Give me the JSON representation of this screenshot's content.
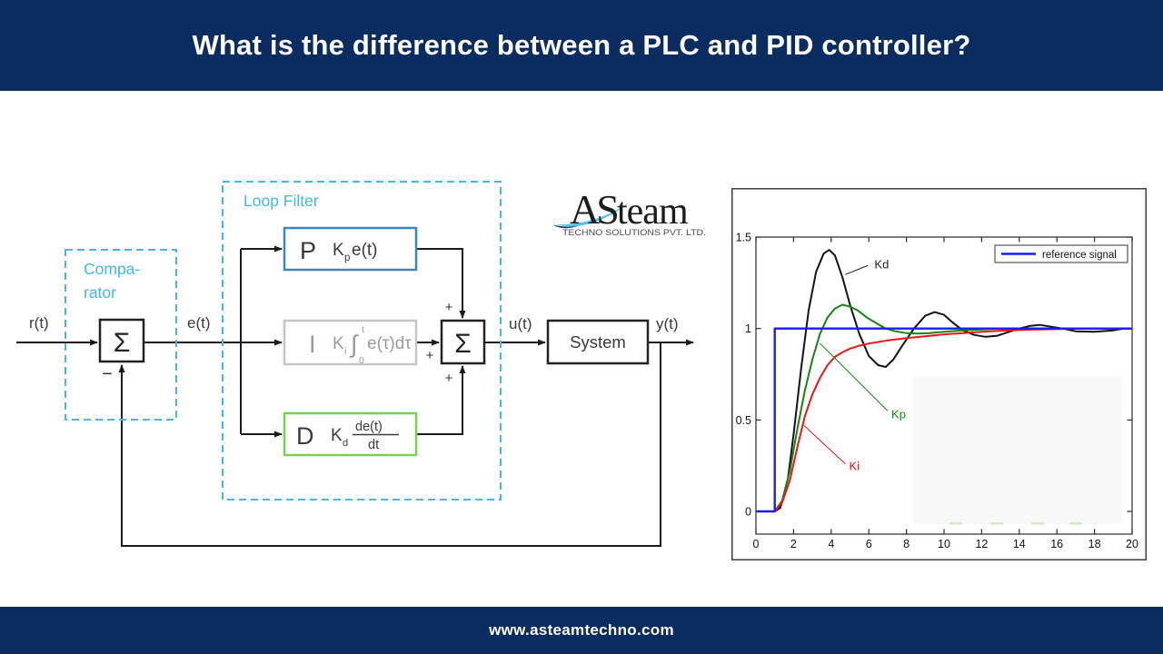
{
  "header": {
    "title": "What is the difference between a PLC and PID controller?",
    "bg": "#0b2c61"
  },
  "footer": {
    "url": "www.asteamtechno.com"
  },
  "logo": {
    "part1": "AS",
    "part2": "team",
    "tagline": "TECHNO SOLUTIONS PVT. LTD."
  },
  "diagram": {
    "input_label": "r(t)",
    "error_label": "e(t)",
    "control_label": "u(t)",
    "output_label": "y(t)",
    "minus": "−",
    "plus": "+",
    "sigma": "Σ",
    "comparator_line1": "Compa-",
    "comparator_line2": "rator",
    "loop_filter_title": "Loop Filter",
    "p": {
      "letter": "P",
      "k": "K",
      "sub": "p",
      "expr": "e(t)"
    },
    "i": {
      "letter": "I",
      "k": "K",
      "sub": "i",
      "integral": "∫",
      "upper": "t",
      "lower": "0",
      "expr": "e(τ)dτ"
    },
    "d": {
      "letter": "D",
      "k": "K",
      "sub": "d",
      "num": "de(t)",
      "den": "dt"
    },
    "system_label": "System",
    "accent_blue": "#45b7e8",
    "p_border": "#3c85c6",
    "i_border": "#c6c6c6",
    "d_border": "#79d150"
  },
  "chart_data": {
    "type": "line",
    "title": "",
    "xlabel": "",
    "ylabel": "",
    "xlim": [
      0,
      20
    ],
    "ylim": [
      -0.12,
      1.5
    ],
    "x_ticks": [
      0,
      2,
      4,
      6,
      8,
      10,
      12,
      14,
      16,
      18,
      20
    ],
    "y_ticks": [
      0,
      0.5,
      1,
      1.5
    ],
    "grid": false,
    "legend": [
      "reference signal"
    ],
    "legend_position": "top-right",
    "series": [
      {
        "name": "kd",
        "label": "Kd",
        "color": "#141414",
        "width": 2,
        "points": [
          [
            1,
            0
          ],
          [
            1.3,
            0.02
          ],
          [
            1.7,
            0.18
          ],
          [
            2,
            0.42
          ],
          [
            2.4,
            0.78
          ],
          [
            2.8,
            1.1
          ],
          [
            3.2,
            1.31
          ],
          [
            3.6,
            1.41
          ],
          [
            3.9,
            1.43
          ],
          [
            4.2,
            1.4
          ],
          [
            4.6,
            1.28
          ],
          [
            5,
            1.13
          ],
          [
            5.5,
            0.97
          ],
          [
            6,
            0.85
          ],
          [
            6.5,
            0.8
          ],
          [
            6.9,
            0.79
          ],
          [
            7.3,
            0.83
          ],
          [
            7.8,
            0.91
          ],
          [
            8.4,
            1.0
          ],
          [
            9,
            1.07
          ],
          [
            9.5,
            1.09
          ],
          [
            10,
            1.075
          ],
          [
            10.5,
            1.03
          ],
          [
            11,
            0.99
          ],
          [
            11.6,
            0.965
          ],
          [
            12.2,
            0.955
          ],
          [
            12.8,
            0.96
          ],
          [
            13.4,
            0.98
          ],
          [
            14,
            1.0
          ],
          [
            14.6,
            1.015
          ],
          [
            15.1,
            1.02
          ],
          [
            15.7,
            1.01
          ],
          [
            16.3,
            1.0
          ],
          [
            17,
            0.985
          ],
          [
            18,
            0.982
          ],
          [
            19,
            0.99
          ],
          [
            19.6,
            1.0
          ],
          [
            20,
            1.0
          ]
        ]
      },
      {
        "name": "kp",
        "label": "Kp",
        "color": "#128712",
        "width": 2,
        "points": [
          [
            1,
            0
          ],
          [
            1.4,
            0.06
          ],
          [
            1.8,
            0.22
          ],
          [
            2.2,
            0.45
          ],
          [
            2.6,
            0.66
          ],
          [
            3,
            0.83
          ],
          [
            3.4,
            0.97
          ],
          [
            3.8,
            1.06
          ],
          [
            4.2,
            1.11
          ],
          [
            4.6,
            1.13
          ],
          [
            5,
            1.12
          ],
          [
            5.4,
            1.1
          ],
          [
            5.9,
            1.06
          ],
          [
            6.4,
            1.03
          ],
          [
            6.9,
            1.0
          ],
          [
            7.4,
            0.985
          ],
          [
            8,
            0.975
          ],
          [
            8.6,
            0.972
          ],
          [
            9.2,
            0.975
          ],
          [
            10,
            0.982
          ],
          [
            11,
            0.99
          ],
          [
            12,
            0.995
          ],
          [
            13,
            1.0
          ],
          [
            20,
            1.0
          ]
        ]
      },
      {
        "name": "ki",
        "label": "Ki",
        "color": "#f01414",
        "width": 2,
        "points": [
          [
            0,
            0
          ],
          [
            1,
            0
          ],
          [
            1.4,
            0.05
          ],
          [
            1.8,
            0.17
          ],
          [
            2.2,
            0.35
          ],
          [
            2.6,
            0.52
          ],
          [
            3,
            0.64
          ],
          [
            3.4,
            0.73
          ],
          [
            3.8,
            0.8
          ],
          [
            4.2,
            0.845
          ],
          [
            4.6,
            0.87
          ],
          [
            5,
            0.89
          ],
          [
            5.5,
            0.906
          ],
          [
            6,
            0.918
          ],
          [
            7,
            0.935
          ],
          [
            8,
            0.948
          ],
          [
            9,
            0.958
          ],
          [
            10,
            0.968
          ],
          [
            11,
            0.975
          ],
          [
            12,
            0.982
          ],
          [
            13,
            0.988
          ],
          [
            14,
            0.992
          ],
          [
            15,
            0.995
          ],
          [
            16,
            0.997
          ],
          [
            18,
            1.0
          ],
          [
            20,
            1.0
          ]
        ]
      },
      {
        "name": "reference-signal",
        "label": "reference signal",
        "color": "#1a1aff",
        "width": 2.4,
        "points": [
          [
            0,
            0
          ],
          [
            1,
            0
          ],
          [
            1,
            1
          ],
          [
            20,
            1
          ]
        ]
      }
    ],
    "annotations": [
      {
        "text": "Kd",
        "color": "#222222",
        "x": 6.3,
        "y": 1.33,
        "leader": [
          5.95,
          1.345,
          4.75,
          1.295
        ]
      },
      {
        "text": "Kp",
        "color": "#128712",
        "x": 7.2,
        "y": 0.51,
        "leader": [
          7.0,
          0.55,
          3.4,
          0.92
        ]
      },
      {
        "text": "Ki",
        "color": "#f01414",
        "x": 4.95,
        "y": 0.225,
        "leader": [
          4.75,
          0.26,
          2.55,
          0.47
        ]
      }
    ]
  }
}
